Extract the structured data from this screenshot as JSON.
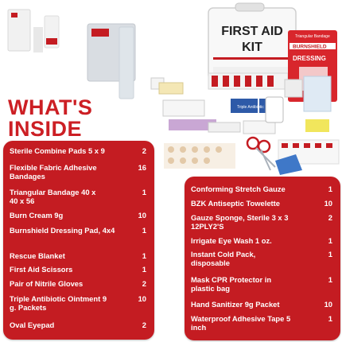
{
  "heading": {
    "line1": "WHAT'S",
    "line2": "INSIDE"
  },
  "product": {
    "kit_title_line1": "FIRST AID",
    "kit_title_line2": "KIT",
    "burnshield_label": "BURNSHIELD",
    "dressing_label": "DRESSING",
    "triangular_label": "Triangular Bandage",
    "triple_label": "Triple Antibiotic"
  },
  "colors": {
    "accent": "#c41c22",
    "heading": "#cc1f24"
  },
  "left_items": [
    {
      "name": "Sterile Combine Pads 5 x 9",
      "qty": "2"
    },
    {
      "name": "Flexible Fabric Adhesive Bandages",
      "qty": "16"
    },
    {
      "name": "Triangular Bandage 40 x 40 x 56",
      "qty": "1"
    },
    {
      "name": "Burn Cream 9g",
      "qty": "10"
    },
    {
      "name": "Burnshield Dressing Pad, 4x4",
      "qty": "1"
    },
    {
      "name": "Rescue Blanket",
      "qty": "1"
    },
    {
      "name": "First Aid Scissors",
      "qty": "1"
    },
    {
      "name": "Pair of Nitrile Gloves",
      "qty": "2"
    },
    {
      "name": "Triple Antibiotic Ointment 9 g. Packets",
      "qty": "10"
    },
    {
      "name": "Oval Eyepad",
      "qty": "2"
    }
  ],
  "right_items": [
    {
      "name": "Conforming Stretch Gauze",
      "qty": "1"
    },
    {
      "name": "BZK Antiseptic Towelette",
      "qty": "10"
    },
    {
      "name": "Gauze Sponge, Sterile 3 x 3 12PLY2'S",
      "qty": "2"
    },
    {
      "name": "Irrigate Eye Wash 1 oz.",
      "qty": "1"
    },
    {
      "name": "Instant Cold Pack, disposable",
      "qty": "1"
    },
    {
      "name": "Mask CPR Protector in plastic bag",
      "qty": "1"
    },
    {
      "name": "Hand Sanitizer 9g Packet",
      "qty": "10"
    },
    {
      "name": "Waterproof Adhesive Tape 5 inch",
      "qty": "1"
    }
  ]
}
